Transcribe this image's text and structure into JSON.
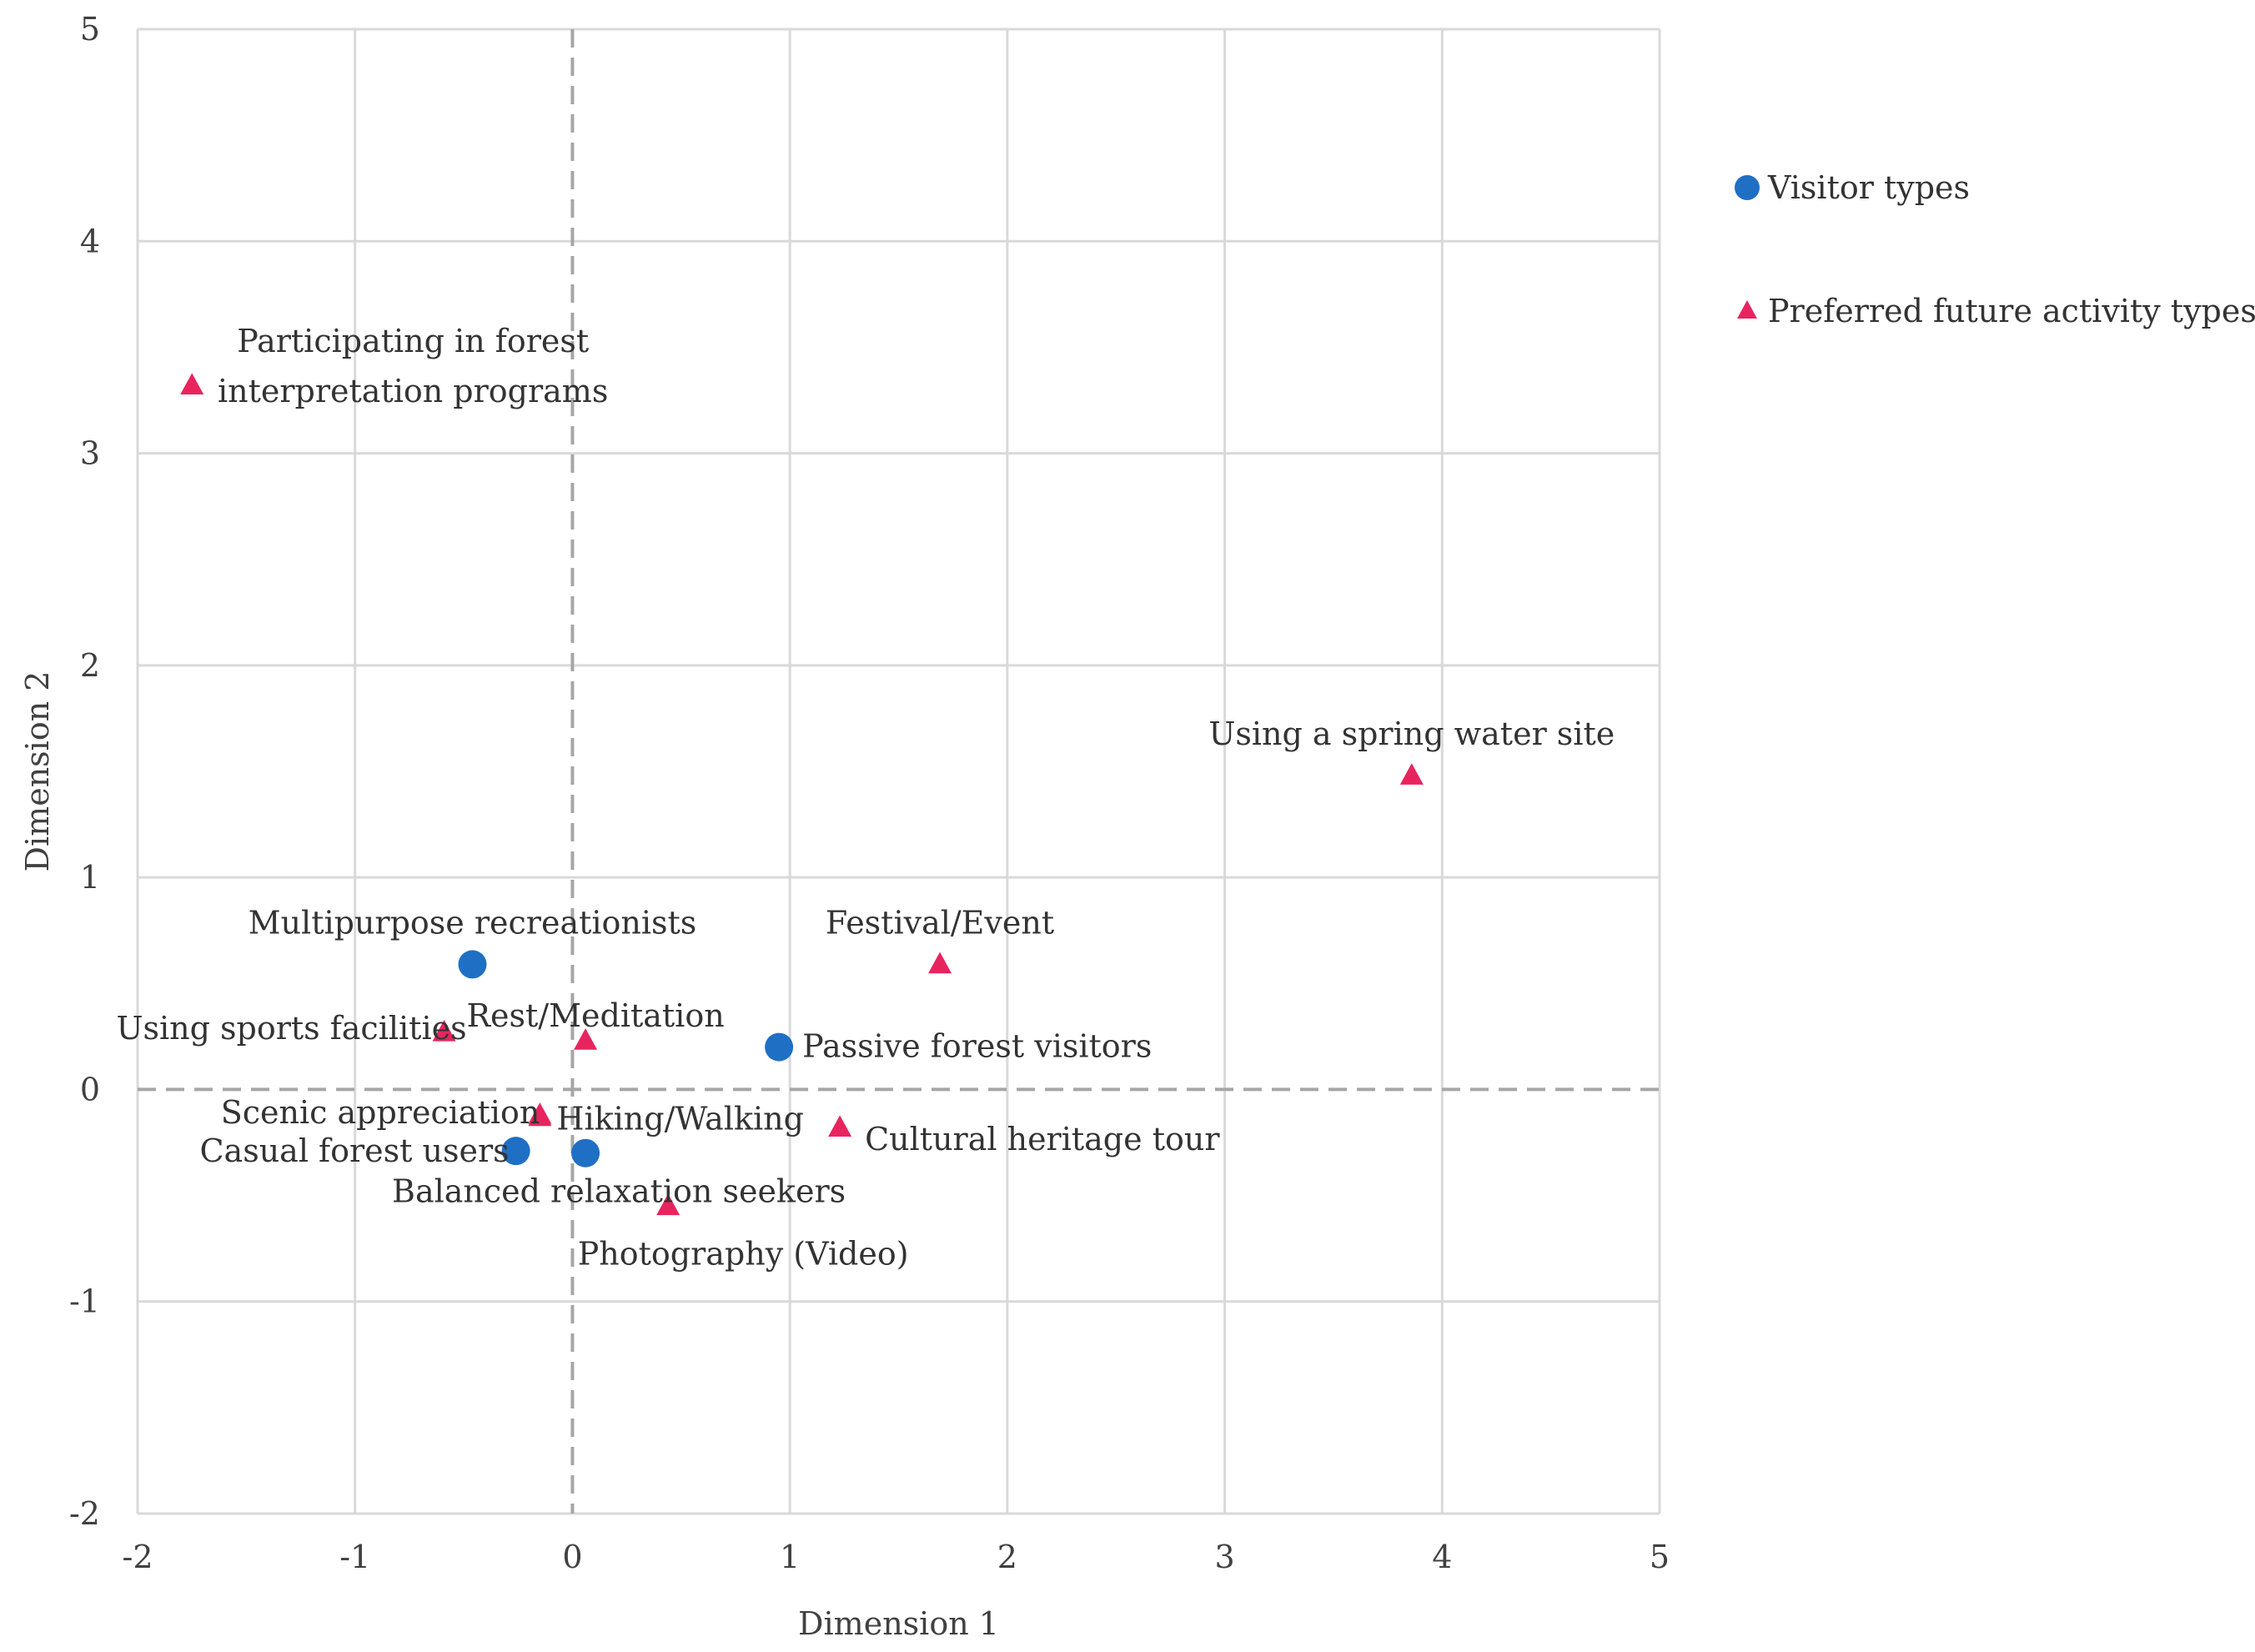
{
  "chart_data": {
    "type": "scatter",
    "title": "",
    "xlabel": "Dimension 1",
    "ylabel": "Dimension 2",
    "xlim": [
      -2,
      5
    ],
    "ylim": [
      -2,
      5
    ],
    "xticks": [
      "-2",
      "-1",
      "0",
      "1",
      "2",
      "3",
      "4",
      "5"
    ],
    "yticks": [
      "-2",
      "-1",
      "0",
      "1",
      "2",
      "3",
      "4",
      "5"
    ],
    "grid": true,
    "zero_lines": "dashed",
    "legend": "right",
    "series": [
      {
        "name": "Visitor types",
        "marker": "circle",
        "color": "#1f6fc5",
        "points": [
          {
            "x": -0.46,
            "y": 0.59,
            "label": "Multipurpose recreationists"
          },
          {
            "x": 0.95,
            "y": 0.2,
            "label": "Passive forest visitors"
          },
          {
            "x": -0.26,
            "y": -0.29,
            "label": "Casual forest users"
          },
          {
            "x": 0.06,
            "y": -0.3,
            "label": "Balanced relaxation seekers"
          }
        ]
      },
      {
        "name": "Preferred future activity types",
        "marker": "triangle",
        "color": "#e8245f",
        "points": [
          {
            "x": -1.75,
            "y": 3.32,
            "label": "Participating in forest interpretation programs"
          },
          {
            "x": 3.86,
            "y": 1.48,
            "label": "Using a spring water site"
          },
          {
            "x": 1.69,
            "y": 0.59,
            "label": "Festival/Event"
          },
          {
            "x": 0.06,
            "y": 0.23,
            "label": "Rest/Meditation"
          },
          {
            "x": -0.59,
            "y": 0.27,
            "label": "Using sports facilities"
          },
          {
            "x": -0.15,
            "y": -0.12,
            "label": "Scenic appreciation"
          },
          {
            "x": -0.15,
            "y": -0.13,
            "label": "Hiking/Walking"
          },
          {
            "x": 1.23,
            "y": -0.18,
            "label": "Cultural heritage tour"
          },
          {
            "x": 0.44,
            "y": -0.55,
            "label": "Photography (Video)"
          }
        ]
      }
    ]
  }
}
